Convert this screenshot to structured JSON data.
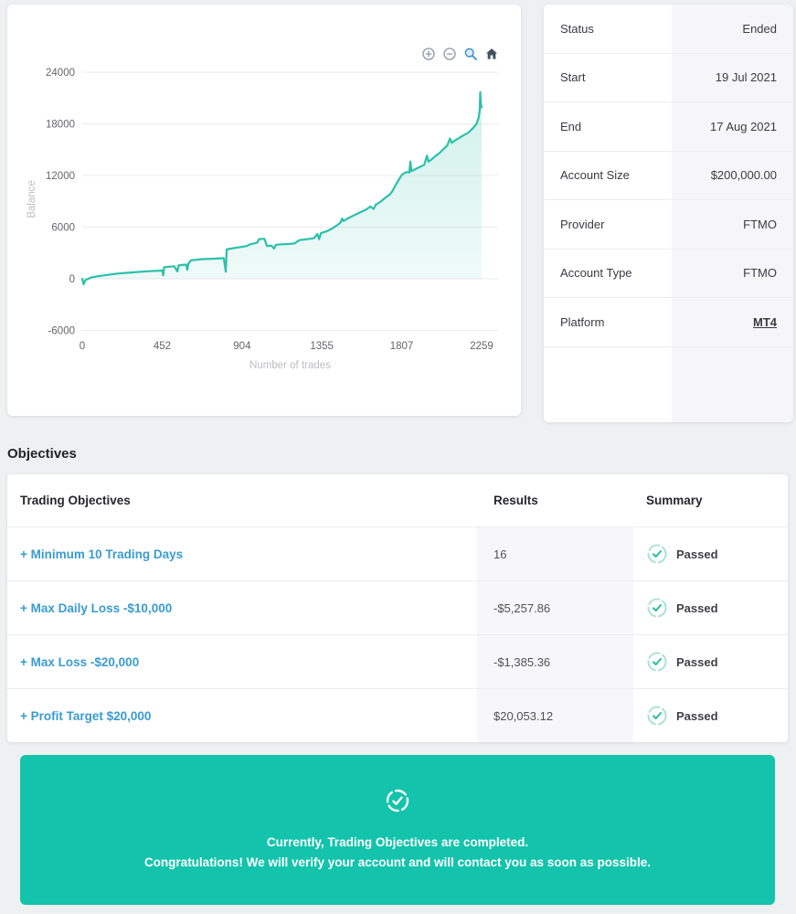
{
  "account_card": {
    "rows": [
      {
        "label": "Status",
        "value": "Ended"
      },
      {
        "label": "Start",
        "value": "19 Jul 2021"
      },
      {
        "label": "End",
        "value": "17 Aug 2021"
      },
      {
        "label": "Account Size",
        "value": "$200,000.00"
      },
      {
        "label": "Provider",
        "value": "FTMO"
      },
      {
        "label": "Account Type",
        "value": "FTMO"
      },
      {
        "label": "Platform",
        "value": "MT4"
      }
    ]
  },
  "chart_toolbar": {
    "icons": [
      "zoom-in",
      "zoom-out",
      "selection-zoom",
      "reset-home"
    ]
  },
  "chart_data": {
    "type": "area",
    "title": "",
    "xlabel": "Number of trades",
    "ylabel": "Balance",
    "xlim": [
      0,
      2259
    ],
    "ylim": [
      -6000,
      24000
    ],
    "xticks": [
      0,
      452,
      904,
      1355,
      1807,
      2259
    ],
    "yticks": [
      24000,
      18000,
      12000,
      6000,
      0,
      -6000
    ],
    "grid": "horizontal",
    "legend": "none",
    "line_color": "#2cc0a8",
    "fill_color": "rgba(44,192,168,0.14)",
    "series": [
      {
        "name": "Balance",
        "points": [
          [
            0,
            0
          ],
          [
            8,
            -650
          ],
          [
            18,
            -150
          ],
          [
            50,
            150
          ],
          [
            90,
            300
          ],
          [
            140,
            450
          ],
          [
            200,
            600
          ],
          [
            260,
            700
          ],
          [
            320,
            800
          ],
          [
            380,
            880
          ],
          [
            440,
            950
          ],
          [
            452,
            980
          ],
          [
            458,
            400
          ],
          [
            463,
            1350
          ],
          [
            490,
            1400
          ],
          [
            520,
            1450
          ],
          [
            538,
            850
          ],
          [
            545,
            1550
          ],
          [
            565,
            1600
          ],
          [
            588,
            1650
          ],
          [
            594,
            1050
          ],
          [
            600,
            1750
          ],
          [
            615,
            2150
          ],
          [
            640,
            2200
          ],
          [
            680,
            2280
          ],
          [
            740,
            2330
          ],
          [
            800,
            2400
          ],
          [
            812,
            820
          ],
          [
            817,
            3400
          ],
          [
            840,
            3500
          ],
          [
            870,
            3600
          ],
          [
            900,
            3700
          ],
          [
            930,
            3800
          ],
          [
            950,
            4000
          ],
          [
            970,
            4100
          ],
          [
            990,
            4200
          ],
          [
            1000,
            4600
          ],
          [
            1030,
            4650
          ],
          [
            1045,
            3800
          ],
          [
            1070,
            3850
          ],
          [
            1085,
            3500
          ],
          [
            1095,
            3950
          ],
          [
            1130,
            4000
          ],
          [
            1170,
            4050
          ],
          [
            1200,
            4100
          ],
          [
            1230,
            4500
          ],
          [
            1250,
            4550
          ],
          [
            1290,
            4650
          ],
          [
            1310,
            4700
          ],
          [
            1330,
            5200
          ],
          [
            1340,
            4600
          ],
          [
            1350,
            5300
          ],
          [
            1380,
            5500
          ],
          [
            1410,
            5800
          ],
          [
            1440,
            6200
          ],
          [
            1460,
            6500
          ],
          [
            1470,
            7000
          ],
          [
            1478,
            6700
          ],
          [
            1500,
            7000
          ],
          [
            1530,
            7300
          ],
          [
            1560,
            7600
          ],
          [
            1590,
            7900
          ],
          [
            1610,
            8100
          ],
          [
            1630,
            8400
          ],
          [
            1648,
            8100
          ],
          [
            1660,
            8600
          ],
          [
            1690,
            9000
          ],
          [
            1720,
            9500
          ],
          [
            1740,
            9800
          ],
          [
            1755,
            10200
          ],
          [
            1770,
            10800
          ],
          [
            1790,
            11500
          ],
          [
            1805,
            12000
          ],
          [
            1815,
            12200
          ],
          [
            1835,
            12400
          ],
          [
            1850,
            12350
          ],
          [
            1856,
            13600
          ],
          [
            1862,
            12500
          ],
          [
            1885,
            12750
          ],
          [
            1910,
            13000
          ],
          [
            1935,
            13250
          ],
          [
            1950,
            14300
          ],
          [
            1958,
            13600
          ],
          [
            1975,
            13850
          ],
          [
            2000,
            14300
          ],
          [
            2020,
            14600
          ],
          [
            2045,
            15100
          ],
          [
            2065,
            15500
          ],
          [
            2080,
            16300
          ],
          [
            2090,
            15800
          ],
          [
            2110,
            16100
          ],
          [
            2135,
            16400
          ],
          [
            2160,
            16700
          ],
          [
            2185,
            17000
          ],
          [
            2210,
            17500
          ],
          [
            2230,
            18000
          ],
          [
            2242,
            18700
          ],
          [
            2248,
            19600
          ],
          [
            2251,
            21700
          ],
          [
            2255,
            20300
          ],
          [
            2259,
            19900
          ]
        ]
      }
    ]
  },
  "objectives": {
    "heading": "Objectives",
    "headers": {
      "objective": "Trading Objectives",
      "result": "Results",
      "summary": "Summary"
    },
    "rows": [
      {
        "objective": "+ Minimum 10 Trading Days",
        "result": "16",
        "summary": "Passed"
      },
      {
        "objective": "+ Max Daily Loss -$10,000",
        "result": "-$5,257.86",
        "summary": "Passed"
      },
      {
        "objective": "+ Max Loss -$20,000",
        "result": "-$1,385.36",
        "summary": "Passed"
      },
      {
        "objective": "+ Profit Target $20,000",
        "result": "$20,053.12",
        "summary": "Passed"
      }
    ],
    "banner": {
      "line1": "Currently, Trading Objectives are completed.",
      "line2": "Congratulations! We will verify your account and will contact you as soon as possible."
    }
  },
  "colors": {
    "accent_teal": "#14c3ab",
    "chart_line": "#2cc0a8",
    "link_blue": "#3a9bd1",
    "passed_check": "#27bca2",
    "page_background": "#eff0f1",
    "value_cell_background": "#f6f6f8"
  }
}
